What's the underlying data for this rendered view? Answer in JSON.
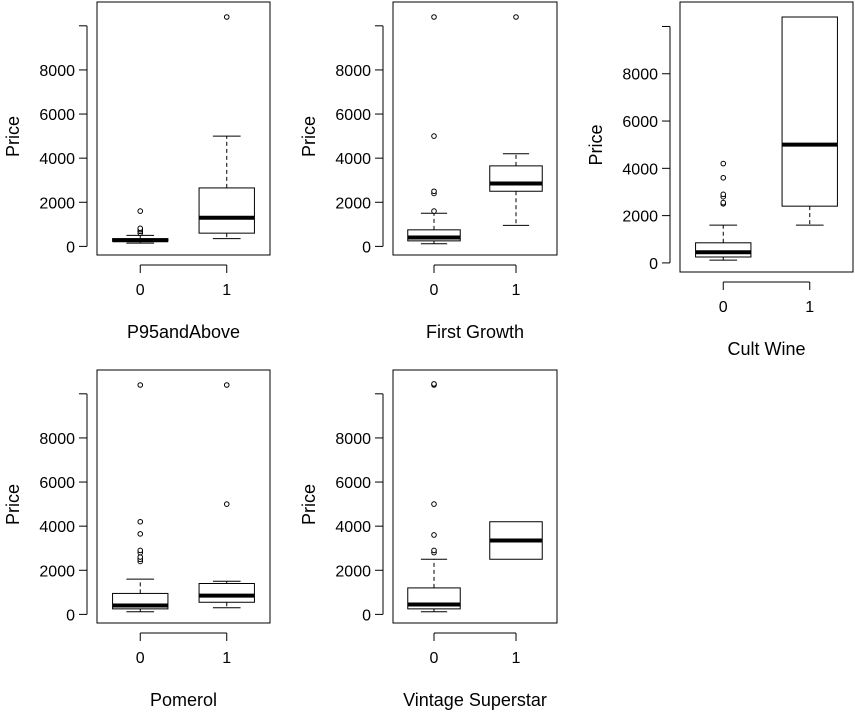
{
  "chart_data": [
    {
      "type": "boxplot",
      "xlabel": "P95andAbove",
      "ylabel": "Price",
      "categories": [
        "0",
        "1"
      ],
      "yticks": [
        0,
        2000,
        4000,
        6000,
        8000
      ],
      "ylim": [
        -300,
        10400
      ],
      "boxes": [
        {
          "category": "0",
          "whisker_low": 150,
          "q1": 230,
          "median": 280,
          "q3": 350,
          "whisker_high": 500,
          "outliers": [
            600,
            680,
            760,
            820,
            1600
          ]
        },
        {
          "category": "1",
          "whisker_low": 350,
          "q1": 600,
          "median": 1300,
          "q3": 2650,
          "whisker_high": 5000,
          "outliers": [
            10400
          ]
        }
      ]
    },
    {
      "type": "boxplot",
      "xlabel": "First Growth",
      "ylabel": "Price",
      "categories": [
        "0",
        "1"
      ],
      "yticks": [
        0,
        2000,
        4000,
        6000,
        8000
      ],
      "ylim": [
        -300,
        10400
      ],
      "boxes": [
        {
          "category": "0",
          "whisker_low": 120,
          "q1": 250,
          "median": 400,
          "q3": 750,
          "whisker_high": 1500,
          "outliers": [
            1600,
            2400,
            2500,
            5000,
            10400
          ]
        },
        {
          "category": "1",
          "whisker_low": 950,
          "q1": 2500,
          "median": 2850,
          "q3": 3650,
          "whisker_high": 4200,
          "outliers": [
            10400
          ]
        }
      ]
    },
    {
      "type": "boxplot",
      "xlabel": "Cult Wine",
      "ylabel": "Price",
      "categories": [
        "0",
        "1"
      ],
      "yticks": [
        0,
        2000,
        4000,
        6000,
        8000
      ],
      "ylim": [
        -300,
        10400
      ],
      "boxes": [
        {
          "category": "0",
          "whisker_low": 120,
          "q1": 250,
          "median": 450,
          "q3": 850,
          "whisker_high": 1600,
          "outliers": [
            2500,
            2550,
            2800,
            2900,
            3600,
            4200
          ]
        },
        {
          "category": "1",
          "whisker_low": 1600,
          "q1": 2400,
          "median": 5000,
          "q3": 10400,
          "whisker_high": 10400,
          "outliers": []
        }
      ]
    },
    {
      "type": "boxplot",
      "xlabel": "Pomerol",
      "ylabel": "Price",
      "categories": [
        "0",
        "1"
      ],
      "yticks": [
        0,
        2000,
        4000,
        6000,
        8000
      ],
      "ylim": [
        -300,
        10400
      ],
      "boxes": [
        {
          "category": "0",
          "whisker_low": 120,
          "q1": 250,
          "median": 400,
          "q3": 950,
          "whisker_high": 1600,
          "outliers": [
            2400,
            2500,
            2600,
            2800,
            2900,
            3650,
            4200,
            10400
          ]
        },
        {
          "category": "1",
          "whisker_low": 300,
          "q1": 550,
          "median": 850,
          "q3": 1400,
          "whisker_high": 1500,
          "outliers": [
            5000,
            10400
          ]
        }
      ]
    },
    {
      "type": "boxplot",
      "xlabel": "Vintage Superstar",
      "ylabel": "Price",
      "categories": [
        "0",
        "1"
      ],
      "yticks": [
        0,
        2000,
        4000,
        6000,
        8000
      ],
      "ylim": [
        -300,
        10400
      ],
      "boxes": [
        {
          "category": "0",
          "whisker_low": 120,
          "q1": 250,
          "median": 450,
          "q3": 1200,
          "whisker_high": 2500,
          "outliers": [
            2800,
            2900,
            3600,
            5000,
            10400,
            10450
          ]
        },
        {
          "category": "1",
          "whisker_low": 2500,
          "q1": 2500,
          "median": 3350,
          "q3": 4200,
          "whisker_high": 4200,
          "outliers": []
        }
      ]
    }
  ]
}
